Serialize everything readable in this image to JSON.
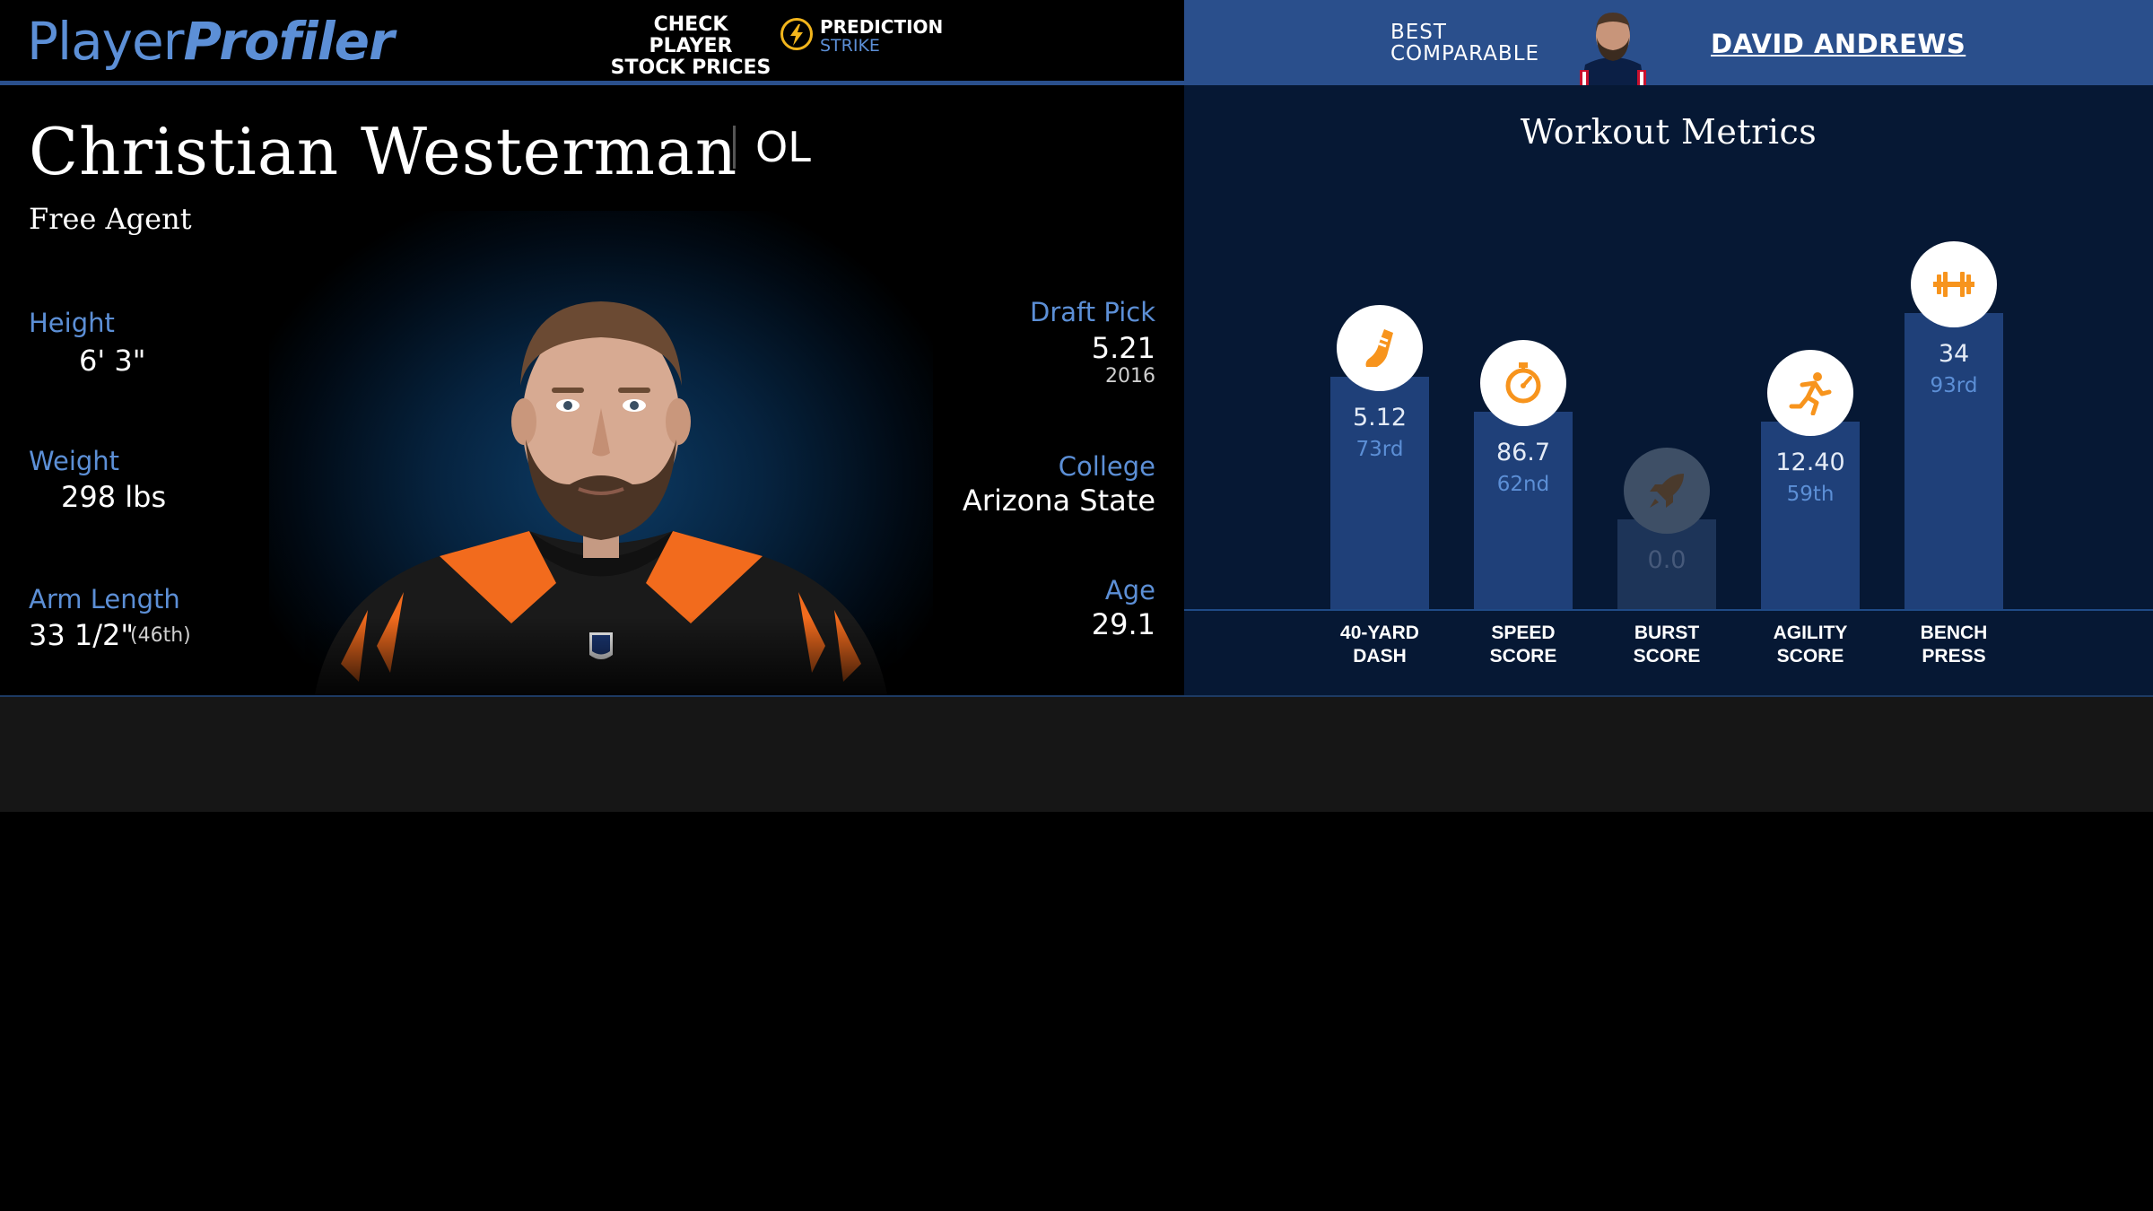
{
  "header": {
    "logo_part1": "Player",
    "logo_part2": "Profiler",
    "promo_text": "CHECK PLAYER\nSTOCK PRICES",
    "promo_brand_line1": "PREDICTION",
    "promo_brand_line2": "STRIKE",
    "comparable_label": "BEST\nCOMPARABLE",
    "comparable_name": "DAVID ANDREWS"
  },
  "player": {
    "name": "Christian Westerman",
    "position": "OL",
    "team": "Free Agent",
    "height_label": "Height",
    "height_value": "6' 3\"",
    "weight_label": "Weight",
    "weight_value": "298 lbs",
    "arm_label": "Arm Length",
    "arm_value": "33 1/2\"",
    "arm_pct": "(46th)",
    "draft_label": "Draft Pick",
    "draft_value": "5.21",
    "draft_year": "2016",
    "college_label": "College",
    "college_value": "Arizona State",
    "age_label": "Age",
    "age_value": "29.1"
  },
  "workout": {
    "title": "Workout Metrics",
    "metrics": [
      {
        "label": "40-YARD\nDASH",
        "value": "5.12",
        "percentile_text": "73rd",
        "percentile": 73,
        "icon": "running-shoe-icon"
      },
      {
        "label": "SPEED\nSCORE",
        "value": "86.7",
        "percentile_text": "62nd",
        "percentile": 62,
        "icon": "stopwatch-icon"
      },
      {
        "label": "BURST\nSCORE",
        "value": "0.0",
        "percentile_text": "",
        "percentile": 0,
        "icon": "rocket-icon"
      },
      {
        "label": "AGILITY\nSCORE",
        "value": "12.40",
        "percentile_text": "59th",
        "percentile": 59,
        "icon": "runner-icon"
      },
      {
        "label": "BENCH\nPRESS",
        "value": "34",
        "percentile_text": "93rd",
        "percentile": 93,
        "icon": "barbell-icon"
      }
    ]
  },
  "colors": {
    "accent_blue": "#5c8fd6",
    "header_blue": "#2a4f8c",
    "bar_blue": "#1f4079",
    "icon_orange": "#f7941d",
    "panel_navy": "#061834"
  }
}
